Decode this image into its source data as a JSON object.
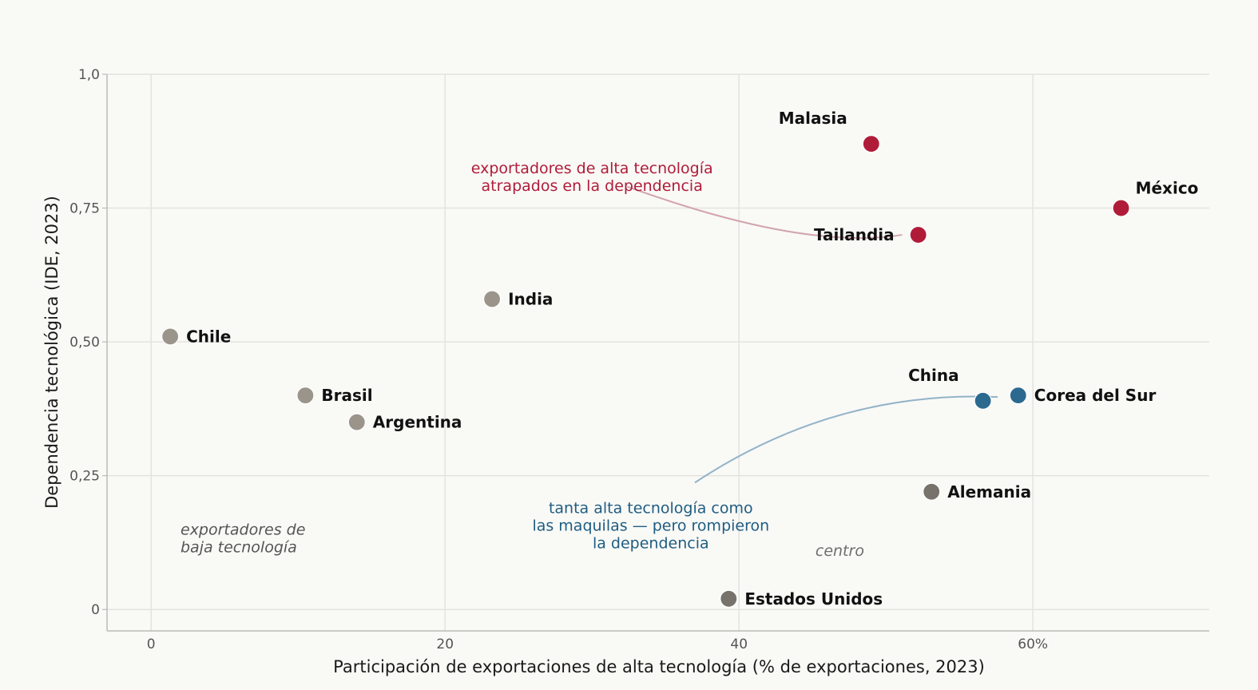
{
  "chart_data": {
    "type": "scatter",
    "xlabel": "Participación de exportaciones de alta tecnología  (% de exportaciones, 2023)",
    "ylabel": "Dependencia tecnológica  (IDE, 2023)",
    "xlim": [
      -3,
      72
    ],
    "ylim": [
      -0.04,
      1.0
    ],
    "x_ticks": [
      {
        "value": 0,
        "label": "0"
      },
      {
        "value": 20,
        "label": "20"
      },
      {
        "value": 40,
        "label": "40"
      },
      {
        "value": 60,
        "label": "60%"
      }
    ],
    "y_ticks": [
      {
        "value": 0,
        "label": "0"
      },
      {
        "value": 0.25,
        "label": "0,25"
      },
      {
        "value": 0.5,
        "label": "0,50"
      },
      {
        "value": 0.75,
        "label": "0,75"
      },
      {
        "value": 1.0,
        "label": "1,0"
      }
    ],
    "grid": true,
    "points": [
      {
        "label": "Malasia",
        "x": 49.0,
        "y": 0.87,
        "color": "#b01c38",
        "label_pos": "above-left"
      },
      {
        "label": "México",
        "x": 66.0,
        "y": 0.75,
        "color": "#b01c38",
        "label_pos": "above-right"
      },
      {
        "label": "Tailandia",
        "x": 52.2,
        "y": 0.7,
        "color": "#b01c38",
        "label_pos": "left"
      },
      {
        "label": "India",
        "x": 23.2,
        "y": 0.58,
        "color": "#9a948b",
        "label_pos": "right"
      },
      {
        "label": "Chile",
        "x": 1.3,
        "y": 0.51,
        "color": "#9a948b",
        "label_pos": "right"
      },
      {
        "label": "Brasil",
        "x": 10.5,
        "y": 0.4,
        "color": "#9a948b",
        "label_pos": "right"
      },
      {
        "label": "Argentina",
        "x": 14.0,
        "y": 0.35,
        "color": "#9a948b",
        "label_pos": "right"
      },
      {
        "label": "China",
        "x": 56.6,
        "y": 0.39,
        "color": "#2b6a8e",
        "label_pos": "above-left"
      },
      {
        "label": "Corea del Sur",
        "x": 59.0,
        "y": 0.4,
        "color": "#2b6a8e",
        "label_pos": "right"
      },
      {
        "label": "Alemania",
        "x": 53.1,
        "y": 0.22,
        "color": "#77726b",
        "label_pos": "right"
      },
      {
        "label": "Estados Unidos",
        "x": 39.3,
        "y": 0.02,
        "color": "#77726b",
        "label_pos": "right"
      }
    ],
    "annotations": [
      {
        "id": "ann-red",
        "lines": [
          "exportadores de alta tecnología",
          "atrapados en la dependencia"
        ],
        "x": 30.0,
        "y": 0.815,
        "color": "#b01c38",
        "arrow_to": {
          "x": 51.1,
          "y": 0.7
        }
      },
      {
        "id": "ann-blue",
        "lines": [
          "tanta alta tecnología como",
          "las maquilas — pero rompieron",
          "la dependencia"
        ],
        "x": 34.0,
        "y": 0.18,
        "color": "#1f5d82",
        "arrow_to": {
          "x": 57.6,
          "y": 0.397
        }
      },
      {
        "id": "ann-low",
        "lines": [
          "exportadores de",
          "baja tecnología"
        ],
        "x": 2.0,
        "y": 0.14,
        "color": "#555555",
        "italic": true
      },
      {
        "id": "ann-centro",
        "lines": [
          "centro"
        ],
        "x": 45.2,
        "y": 0.1,
        "color": "#6e6e6e",
        "italic": true
      }
    ]
  }
}
